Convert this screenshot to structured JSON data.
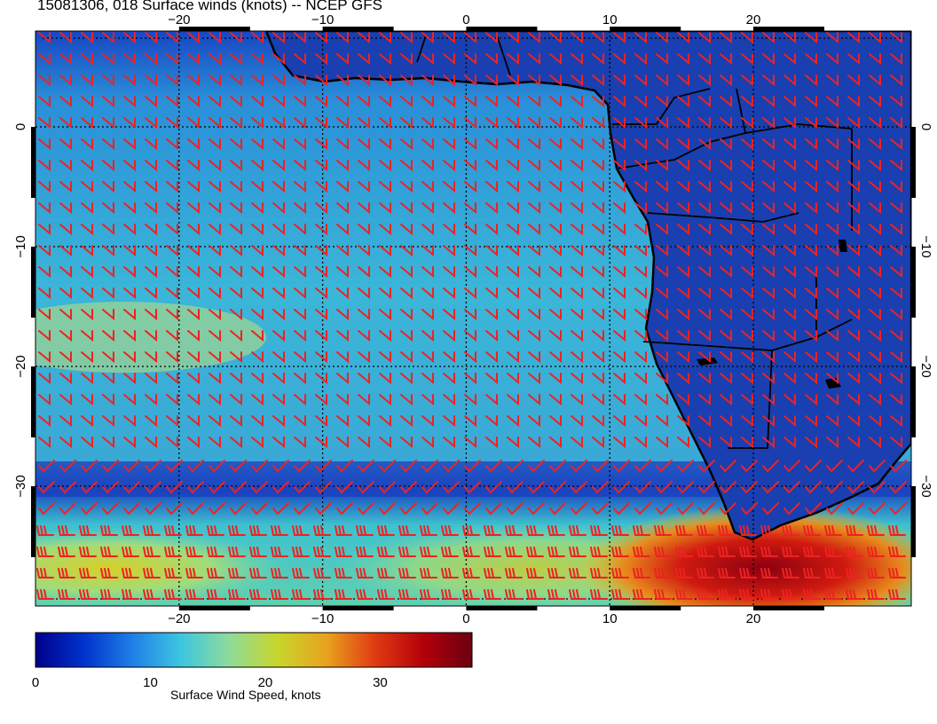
{
  "title": "15081306, 018 Surface winds (knots) -- NCEP GFS",
  "map": {
    "lon_range": [
      -30,
      31
    ],
    "lat_range": [
      -40,
      8
    ],
    "lon_ticks": [
      {
        "value": -20,
        "label": "−20"
      },
      {
        "value": -10,
        "label": "−10"
      },
      {
        "value": 0,
        "label": "0"
      },
      {
        "value": 10,
        "label": "10"
      },
      {
        "value": 20,
        "label": "20"
      }
    ],
    "lat_ticks": [
      {
        "value": 0,
        "label": "0"
      },
      {
        "value": -10,
        "label": "−10"
      },
      {
        "value": -20,
        "label": "−20"
      },
      {
        "value": -30,
        "label": "−30"
      }
    ],
    "gridlines": "dotted",
    "coastline_color": "#000000",
    "barb_color": "#ee2222",
    "field": "surface wind speed (knots) with wind barbs"
  },
  "colorbar": {
    "label": "Surface Wind Speed, knots",
    "range": [
      0,
      38
    ],
    "ticks": [
      {
        "value": 0,
        "label": "0"
      },
      {
        "value": 10,
        "label": "10"
      },
      {
        "value": 20,
        "label": "20"
      },
      {
        "value": 30,
        "label": "30"
      }
    ],
    "colors": [
      "#00008b",
      "#0033cc",
      "#1f7fe6",
      "#3dc6e0",
      "#8edb9a",
      "#c8d62a",
      "#e8a21f",
      "#e03a12",
      "#b3000a",
      "#6b0010"
    ]
  }
}
